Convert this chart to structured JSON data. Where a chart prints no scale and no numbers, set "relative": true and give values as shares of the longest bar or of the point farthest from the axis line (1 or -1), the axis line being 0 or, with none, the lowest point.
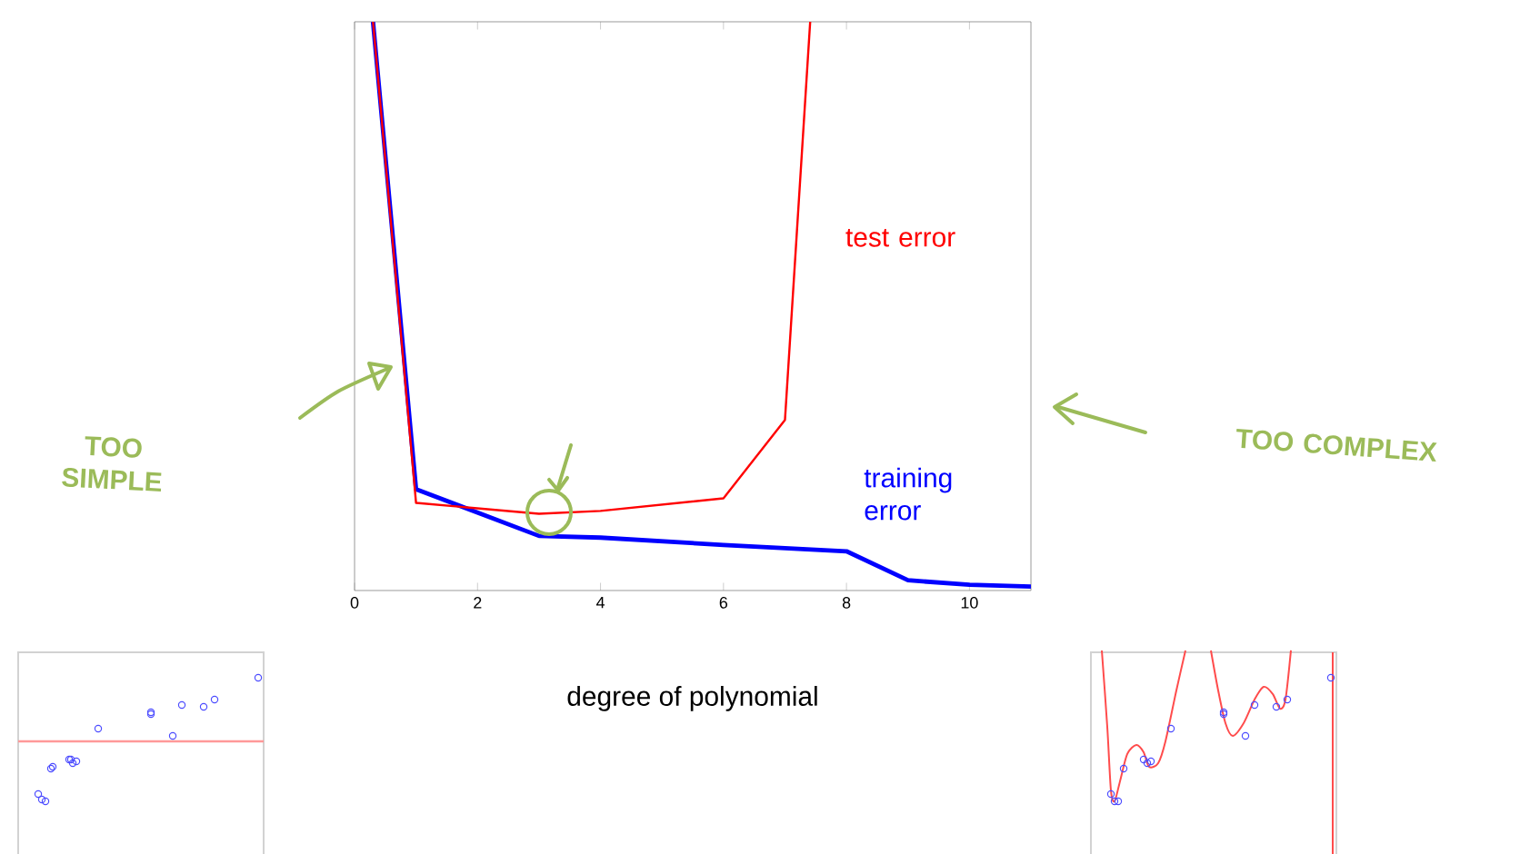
{
  "chart_data": {
    "type": "line",
    "xlabel": "degree of polynomial",
    "relative": true,
    "xlim": [
      0,
      11
    ],
    "xticks": [
      0,
      2,
      4,
      6,
      8,
      10
    ],
    "series": [
      {
        "name": "test error",
        "color": "#ff0000",
        "x": [
          0.3,
          1,
          3,
          4,
          6,
          7,
          7.41
        ],
        "values": [
          1,
          0.154,
          0.135,
          0.14,
          0.162,
          0.3,
          1
        ]
      },
      {
        "name": "training error",
        "color": "#0000ff",
        "x": [
          0.3,
          1,
          3,
          4,
          6,
          8,
          9,
          10,
          11
        ],
        "values": [
          1,
          0.178,
          0.096,
          0.093,
          0.08,
          0.069,
          0.018,
          0.01,
          0.007
        ]
      }
    ],
    "annotations": [
      "TOO SIMPLE",
      "TOO COMPLEX"
    ]
  }
}
